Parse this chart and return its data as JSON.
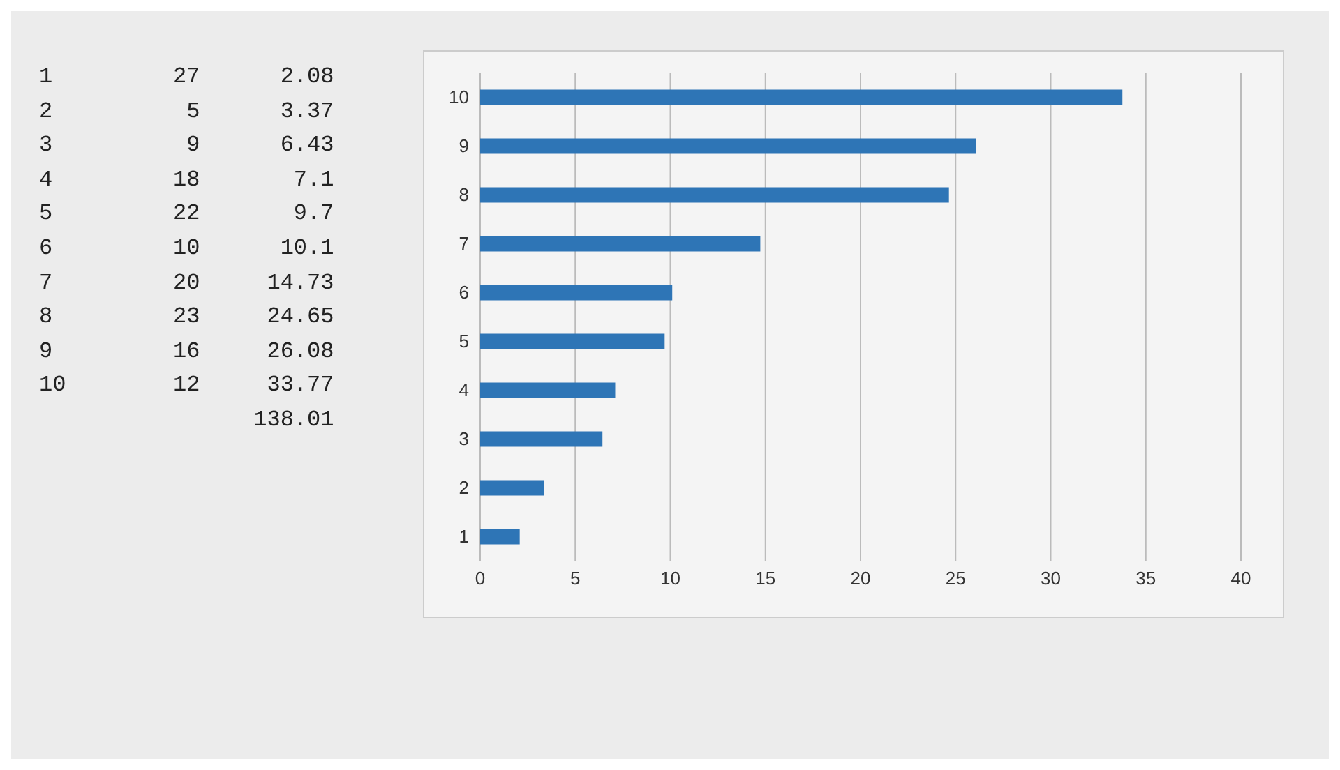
{
  "chart_data": [
    {
      "type": "other",
      "annotations": [
        "1 27 2.08",
        "2 5 3.37",
        "3 9 6.43",
        "4 18 7.1",
        "5 22 9.7",
        "6 10 10.1",
        "7 20 14.73",
        "8 23 24.65",
        "9 16 26.08",
        "10 12 33.77",
        "  138.01"
      ]
    },
    {
      "type": "bar",
      "orientation": "horizontal",
      "categories": [
        "10",
        "9",
        "8",
        "7",
        "6",
        "5",
        "4",
        "3",
        "2",
        "1"
      ],
      "values": [
        33.77,
        26.08,
        24.65,
        14.73,
        10.1,
        9.7,
        7.1,
        6.43,
        3.37,
        2.08
      ],
      "color": "#2e75b6",
      "xlim": [
        0,
        40
      ],
      "xticks": [
        0,
        5,
        10,
        15,
        20,
        25,
        30,
        35,
        40
      ],
      "grid": "x",
      "legend": false
    }
  ]
}
